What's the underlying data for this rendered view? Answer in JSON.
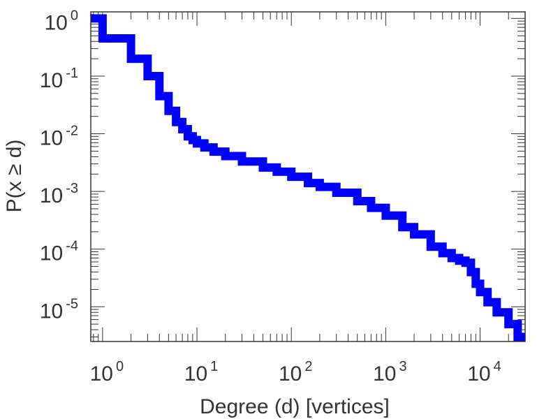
{
  "chart_data": {
    "type": "line",
    "step": true,
    "title": "",
    "xlabel": "Degree (d) [vertices]",
    "ylabel": "P(x ≥ d)",
    "xscale": "log",
    "yscale": "log",
    "xlim": [
      0.75,
      30000
    ],
    "ylim": [
      2.5e-06,
      1.3
    ],
    "x_ticks": [
      {
        "base": "10",
        "exp": "0",
        "value": 1
      },
      {
        "base": "10",
        "exp": "1",
        "value": 10
      },
      {
        "base": "10",
        "exp": "2",
        "value": 100
      },
      {
        "base": "10",
        "exp": "3",
        "value": 1000
      },
      {
        "base": "10",
        "exp": "4",
        "value": 10000
      }
    ],
    "y_ticks": [
      {
        "base": "10",
        "exp": "0",
        "value": 1
      },
      {
        "base": "10",
        "exp": "-1",
        "value": 0.1
      },
      {
        "base": "10",
        "exp": "-2",
        "value": 0.01
      },
      {
        "base": "10",
        "exp": "-3",
        "value": 0.001
      },
      {
        "base": "10",
        "exp": "-4",
        "value": 0.0001
      },
      {
        "base": "10",
        "exp": "-5",
        "value": 1e-05
      }
    ],
    "grid": false,
    "series": [
      {
        "color": "#0000ff",
        "x": [
          0.75,
          1,
          2,
          3,
          4,
          5,
          6,
          7,
          8,
          9,
          10,
          12,
          15,
          20,
          30,
          50,
          70,
          100,
          150,
          200,
          300,
          500,
          700,
          1000,
          1500,
          2000,
          3000,
          4000,
          5000,
          6000,
          7000,
          8000,
          9000,
          10000,
          12000,
          15000,
          20000,
          25000
        ],
        "y": [
          1.0,
          0.45,
          0.2,
          0.1,
          0.045,
          0.025,
          0.016,
          0.012,
          0.009,
          0.0078,
          0.0068,
          0.0058,
          0.0049,
          0.0041,
          0.0033,
          0.0026,
          0.0022,
          0.0018,
          0.0014,
          0.0012,
          0.00095,
          0.00068,
          0.00052,
          0.00038,
          0.00024,
          0.00018,
          0.00011,
          8.5e-05,
          7e-05,
          6.3e-05,
          5.8e-05,
          4e-05,
          2.5e-05,
          1.8e-05,
          1.2e-05,
          8e-06,
          5e-06,
          3e-06
        ]
      }
    ]
  }
}
